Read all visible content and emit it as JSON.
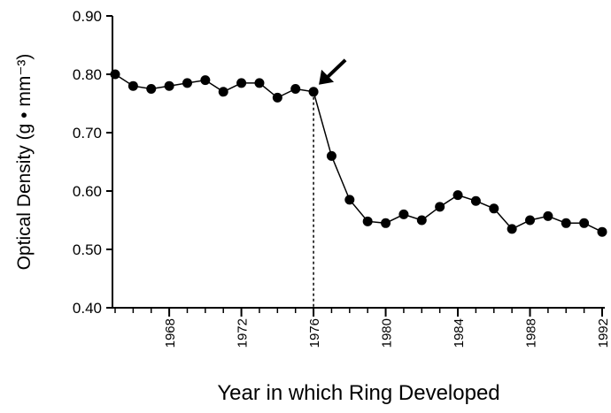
{
  "chart_data": {
    "type": "line",
    "x_label": "Year in which Ring Developed",
    "y_label": "Optical Density (g • mm⁻³)",
    "x": [
      1965,
      1966,
      1967,
      1968,
      1969,
      1970,
      1971,
      1972,
      1973,
      1974,
      1975,
      1976,
      1977,
      1978,
      1979,
      1980,
      1981,
      1982,
      1983,
      1984,
      1985,
      1986,
      1987,
      1988,
      1989,
      1990,
      1991,
      1992
    ],
    "series": [
      {
        "color": "#000000",
        "values": [
          0.8,
          0.78,
          0.775,
          0.78,
          0.785,
          0.79,
          0.77,
          0.785,
          0.785,
          0.76,
          0.775,
          0.77,
          0.66,
          0.585,
          0.548,
          0.545,
          0.56,
          0.55,
          0.573,
          0.593,
          0.583,
          0.57,
          0.535,
          0.55,
          0.557,
          0.545,
          0.545,
          0.53
        ]
      }
    ],
    "xlim": [
      1965,
      1992
    ],
    "xticks": [
      1968,
      1972,
      1976,
      1980,
      1984,
      1988,
      1992
    ],
    "ylim": [
      0.4,
      0.9
    ],
    "yticks": [
      {
        "value": 0.4,
        "label": "0.40"
      },
      {
        "value": 0.5,
        "label": "0.50"
      },
      {
        "value": 0.6,
        "label": "0.60"
      },
      {
        "value": 0.7,
        "label": "0.70"
      },
      {
        "value": 0.8,
        "label": "0.80"
      },
      {
        "value": 0.9,
        "label": "0.90"
      }
    ],
    "grid": false
  }
}
